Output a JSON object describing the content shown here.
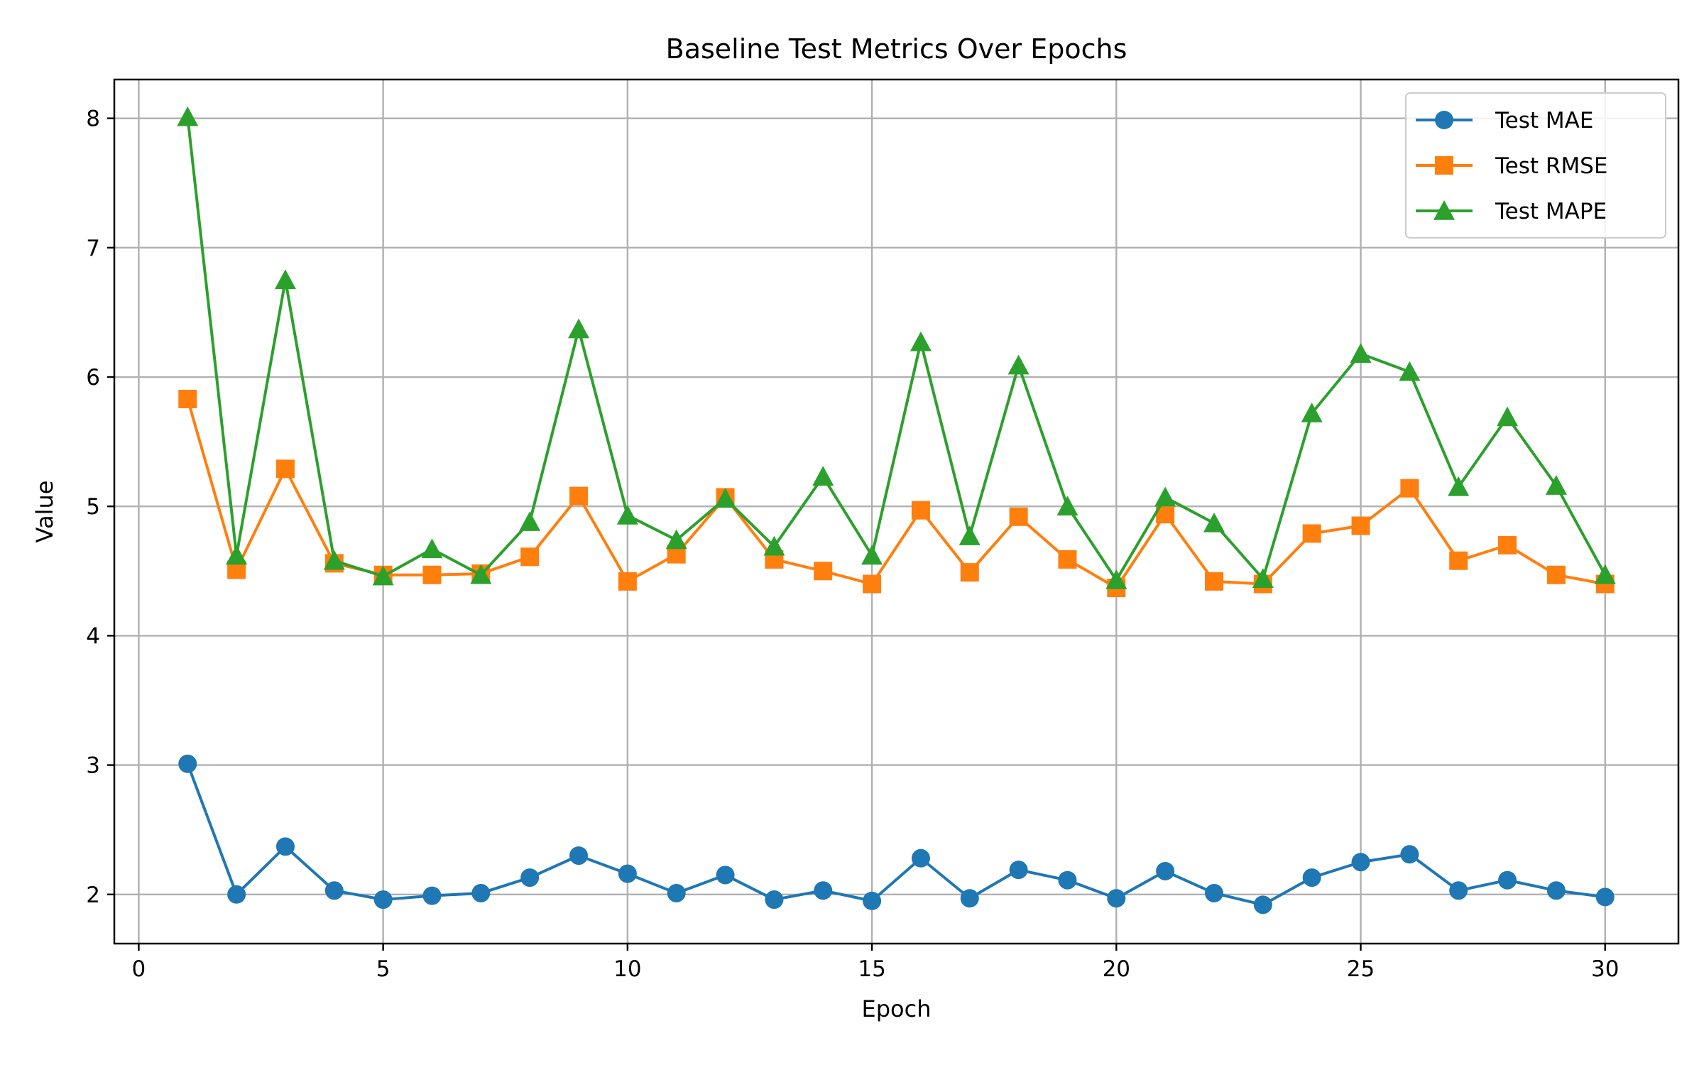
{
  "chart_data": {
    "type": "line",
    "title": "Baseline Test Metrics Over Epochs",
    "xlabel": "Epoch",
    "ylabel": "Value",
    "xlim": [
      -0.5,
      31.5
    ],
    "ylim": [
      1.62,
      8.3
    ],
    "xticks": [
      0,
      5,
      10,
      15,
      20,
      25,
      30
    ],
    "yticks": [
      2,
      3,
      4,
      5,
      6,
      7,
      8
    ],
    "grid": true,
    "legend_position": "top-right",
    "x": [
      1,
      2,
      3,
      4,
      5,
      6,
      7,
      8,
      9,
      10,
      11,
      12,
      13,
      14,
      15,
      16,
      17,
      18,
      19,
      20,
      21,
      22,
      23,
      24,
      25,
      26,
      27,
      28,
      29,
      30
    ],
    "series": [
      {
        "name": "Test MAE",
        "color": "#1f77b4",
        "marker": "circle",
        "values": [
          3.01,
          2.0,
          2.37,
          2.03,
          1.96,
          1.99,
          2.01,
          2.13,
          2.3,
          2.16,
          2.01,
          2.15,
          1.96,
          2.03,
          1.95,
          2.28,
          1.97,
          2.19,
          2.11,
          1.97,
          2.18,
          2.01,
          1.92,
          2.13,
          2.25,
          2.31,
          2.03,
          2.11,
          2.03,
          1.98
        ]
      },
      {
        "name": "Test RMSE",
        "color": "#ff7f0e",
        "marker": "square",
        "values": [
          5.83,
          4.51,
          5.29,
          4.56,
          4.47,
          4.47,
          4.48,
          4.61,
          5.08,
          4.42,
          4.63,
          5.07,
          4.59,
          4.5,
          4.4,
          4.97,
          4.49,
          4.92,
          4.59,
          4.37,
          4.94,
          4.42,
          4.4,
          4.79,
          4.85,
          5.14,
          4.58,
          4.7,
          4.47,
          4.4
        ]
      },
      {
        "name": "Test MAPE",
        "color": "#2ca02c",
        "marker": "triangle",
        "values": [
          8.01,
          4.62,
          6.75,
          4.58,
          4.46,
          4.67,
          4.47,
          4.88,
          6.37,
          4.93,
          4.74,
          5.06,
          4.69,
          5.23,
          4.62,
          6.27,
          4.77,
          6.09,
          5.0,
          4.43,
          5.07,
          4.87,
          4.44,
          5.72,
          6.18,
          6.04,
          5.15,
          5.69,
          5.16,
          4.47
        ]
      }
    ]
  }
}
